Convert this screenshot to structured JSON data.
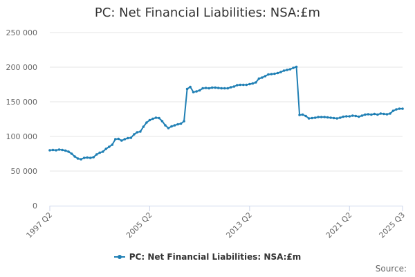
{
  "chart_data": {
    "type": "line",
    "title": "PC: Net Financial Liabilities: NSA:£m",
    "xlabel": "",
    "ylabel": "",
    "x_ticks": [
      "1997 Q2",
      "2005 Q2",
      "2013 Q2",
      "2021 Q2",
      "2025 Q3"
    ],
    "y_ticks": [
      "0",
      "50 000",
      "100 000",
      "150 000",
      "200 000",
      "250 000"
    ],
    "ylim": [
      0,
      250000
    ],
    "grid": "horizontal",
    "legend_position": "bottom-center",
    "series": [
      {
        "name": "PC: Net Financial Liabilities: NSA:£m",
        "color": "#1f7fb4",
        "points": [
          {
            "x": "1997 Q2",
            "y": 80000
          },
          {
            "x": "1997 Q3",
            "y": 80500
          },
          {
            "x": "1997 Q4",
            "y": 80000
          },
          {
            "x": "1998 Q1",
            "y": 81000
          },
          {
            "x": "1998 Q2",
            "y": 80500
          },
          {
            "x": "1998 Q3",
            "y": 79500
          },
          {
            "x": "1998 Q4",
            "y": 78000
          },
          {
            "x": "1999 Q1",
            "y": 75000
          },
          {
            "x": "1999 Q2",
            "y": 71000
          },
          {
            "x": "1999 Q3",
            "y": 68000
          },
          {
            "x": "1999 Q4",
            "y": 67000
          },
          {
            "x": "2000 Q1",
            "y": 69000
          },
          {
            "x": "2000 Q2",
            "y": 69500
          },
          {
            "x": "2000 Q3",
            "y": 69000
          },
          {
            "x": "2000 Q4",
            "y": 70000
          },
          {
            "x": "2001 Q1",
            "y": 74000
          },
          {
            "x": "2001 Q2",
            "y": 76500
          },
          {
            "x": "2001 Q3",
            "y": 78000
          },
          {
            "x": "2001 Q4",
            "y": 82000
          },
          {
            "x": "2002 Q1",
            "y": 85000
          },
          {
            "x": "2002 Q2",
            "y": 88000
          },
          {
            "x": "2002 Q3",
            "y": 96000
          },
          {
            "x": "2002 Q4",
            "y": 96500
          },
          {
            "x": "2003 Q1",
            "y": 94000
          },
          {
            "x": "2003 Q2",
            "y": 96000
          },
          {
            "x": "2003 Q3",
            "y": 97500
          },
          {
            "x": "2003 Q4",
            "y": 98000
          },
          {
            "x": "2004 Q1",
            "y": 103000
          },
          {
            "x": "2004 Q2",
            "y": 106000
          },
          {
            "x": "2004 Q3",
            "y": 107000
          },
          {
            "x": "2004 Q4",
            "y": 114000
          },
          {
            "x": "2005 Q1",
            "y": 120000
          },
          {
            "x": "2005 Q2",
            "y": 123500
          },
          {
            "x": "2005 Q3",
            "y": 125500
          },
          {
            "x": "2005 Q4",
            "y": 127000
          },
          {
            "x": "2006 Q1",
            "y": 126500
          },
          {
            "x": "2006 Q2",
            "y": 122000
          },
          {
            "x": "2006 Q3",
            "y": 116000
          },
          {
            "x": "2006 Q4",
            "y": 112000
          },
          {
            "x": "2007 Q1",
            "y": 114500
          },
          {
            "x": "2007 Q2",
            "y": 116000
          },
          {
            "x": "2007 Q3",
            "y": 117500
          },
          {
            "x": "2007 Q4",
            "y": 118500
          },
          {
            "x": "2008 Q1",
            "y": 122000
          },
          {
            "x": "2008 Q2",
            "y": 168500
          },
          {
            "x": "2008 Q3",
            "y": 171500
          },
          {
            "x": "2008 Q4",
            "y": 164000
          },
          {
            "x": "2009 Q1",
            "y": 165000
          },
          {
            "x": "2009 Q2",
            "y": 166500
          },
          {
            "x": "2009 Q3",
            "y": 169500
          },
          {
            "x": "2009 Q4",
            "y": 170000
          },
          {
            "x": "2010 Q1",
            "y": 169500
          },
          {
            "x": "2010 Q2",
            "y": 170500
          },
          {
            "x": "2010 Q3",
            "y": 170500
          },
          {
            "x": "2010 Q4",
            "y": 170000
          },
          {
            "x": "2011 Q1",
            "y": 169500
          },
          {
            "x": "2011 Q2",
            "y": 169500
          },
          {
            "x": "2011 Q3",
            "y": 169500
          },
          {
            "x": "2011 Q4",
            "y": 171000
          },
          {
            "x": "2012 Q1",
            "y": 172000
          },
          {
            "x": "2012 Q2",
            "y": 174000
          },
          {
            "x": "2012 Q3",
            "y": 174500
          },
          {
            "x": "2012 Q4",
            "y": 174500
          },
          {
            "x": "2013 Q1",
            "y": 174500
          },
          {
            "x": "2013 Q2",
            "y": 175500
          },
          {
            "x": "2013 Q3",
            "y": 176500
          },
          {
            "x": "2013 Q4",
            "y": 178000
          },
          {
            "x": "2014 Q1",
            "y": 183500
          },
          {
            "x": "2014 Q2",
            "y": 185000
          },
          {
            "x": "2014 Q3",
            "y": 187000
          },
          {
            "x": "2014 Q4",
            "y": 189500
          },
          {
            "x": "2015 Q1",
            "y": 190000
          },
          {
            "x": "2015 Q2",
            "y": 190500
          },
          {
            "x": "2015 Q3",
            "y": 191500
          },
          {
            "x": "2015 Q4",
            "y": 193000
          },
          {
            "x": "2016 Q1",
            "y": 195000
          },
          {
            "x": "2016 Q2",
            "y": 196000
          },
          {
            "x": "2016 Q3",
            "y": 197000
          },
          {
            "x": "2016 Q4",
            "y": 199000
          },
          {
            "x": "2017 Q1",
            "y": 200500
          },
          {
            "x": "2017 Q2",
            "y": 131000
          },
          {
            "x": "2017 Q3",
            "y": 131500
          },
          {
            "x": "2017 Q4",
            "y": 129500
          },
          {
            "x": "2018 Q1",
            "y": 126000
          },
          {
            "x": "2018 Q2",
            "y": 126500
          },
          {
            "x": "2018 Q3",
            "y": 127000
          },
          {
            "x": "2018 Q4",
            "y": 128000
          },
          {
            "x": "2019 Q1",
            "y": 128000
          },
          {
            "x": "2019 Q2",
            "y": 128000
          },
          {
            "x": "2019 Q3",
            "y": 127500
          },
          {
            "x": "2019 Q4",
            "y": 127000
          },
          {
            "x": "2020 Q1",
            "y": 126500
          },
          {
            "x": "2020 Q2",
            "y": 126000
          },
          {
            "x": "2020 Q3",
            "y": 127000
          },
          {
            "x": "2020 Q4",
            "y": 128500
          },
          {
            "x": "2021 Q1",
            "y": 129000
          },
          {
            "x": "2021 Q2",
            "y": 129000
          },
          {
            "x": "2021 Q3",
            "y": 130000
          },
          {
            "x": "2021 Q4",
            "y": 129500
          },
          {
            "x": "2022 Q1",
            "y": 128500
          },
          {
            "x": "2022 Q2",
            "y": 130000
          },
          {
            "x": "2022 Q3",
            "y": 131500
          },
          {
            "x": "2022 Q4",
            "y": 132000
          },
          {
            "x": "2023 Q1",
            "y": 131500
          },
          {
            "x": "2023 Q2",
            "y": 132500
          },
          {
            "x": "2023 Q3",
            "y": 131500
          },
          {
            "x": "2023 Q4",
            "y": 133000
          },
          {
            "x": "2024 Q1",
            "y": 132500
          },
          {
            "x": "2024 Q2",
            "y": 132000
          },
          {
            "x": "2024 Q3",
            "y": 133000
          },
          {
            "x": "2024 Q4",
            "y": 137000
          },
          {
            "x": "2025 Q1",
            "y": 139000
          },
          {
            "x": "2025 Q2",
            "y": 140000
          },
          {
            "x": "2025 Q3",
            "y": 140000
          }
        ]
      }
    ]
  },
  "credits": "Source:",
  "colors": {
    "series": "#1f7fb4",
    "grid": "#e6e6e6",
    "axis_text": "#666666",
    "title_text": "#333333"
  }
}
